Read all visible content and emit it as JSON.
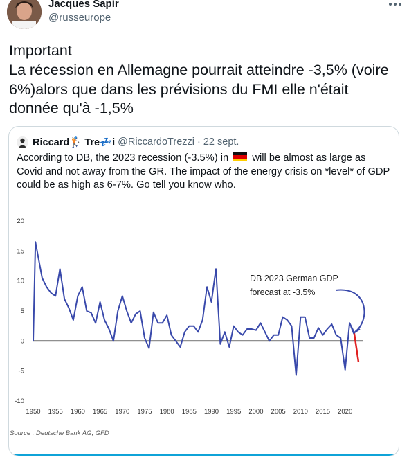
{
  "tweet": {
    "author_name": "Jacques Sapir",
    "author_handle": "@russeurope",
    "text": "Important\nLa récession en Allemagne pourrait atteindre -3,5% (voire 6%)alors que dans les prévisions du FMI elle n'était donnée qu'à -1,5%"
  },
  "quoted": {
    "author_name": "Riccard🏌️ Tre💤i",
    "author_handle": "@RiccardoTrezzi",
    "date": "· 22 sept.",
    "text_before_flag": "According to DB, the 2023 recession (-3.5%) in",
    "flag": "germany-flag",
    "text_after_flag": "will be almost as large as Covid and not away from the GR. The impact of the energy crisis on *level* of GDP could be as high as 6-7%. Go tell you know who."
  },
  "colors": {
    "series": "#3949ab",
    "forecast": "#e02020",
    "accent": "#0fa3d8",
    "border": "#cfd9de"
  },
  "chart_data": {
    "type": "line",
    "title": "",
    "xlabel": "",
    "ylabel": "",
    "xlim": [
      1950,
      2023
    ],
    "ylim": [
      -10,
      20
    ],
    "x_ticks": [
      1950,
      1955,
      1960,
      1965,
      1970,
      1975,
      1980,
      1985,
      1990,
      1995,
      2000,
      2005,
      2010,
      2015,
      2020
    ],
    "y_ticks": [
      20,
      15,
      10,
      5,
      0,
      -5,
      -10
    ],
    "grid": false,
    "zero_line": true,
    "annotation": "DB 2023 German GDP\nforecast at -3.5%",
    "source": "Source : Deutsche Bank AG, GFD",
    "series": [
      {
        "values": [
          [
            1950,
            0
          ],
          [
            1950.5,
            16.5
          ],
          [
            1952,
            10.5
          ],
          [
            1953,
            9
          ],
          [
            1954,
            8
          ],
          [
            1955,
            7.5
          ],
          [
            1956,
            12
          ],
          [
            1957,
            7
          ],
          [
            1958,
            5.5
          ],
          [
            1959,
            3.5
          ],
          [
            1960,
            7.5
          ],
          [
            1961,
            9
          ],
          [
            1962,
            5
          ],
          [
            1963,
            4.7
          ],
          [
            1964,
            3
          ],
          [
            1965,
            6.5
          ],
          [
            1966,
            3.5
          ],
          [
            1967,
            2
          ],
          [
            1968,
            0
          ],
          [
            1969,
            5
          ],
          [
            1970,
            7.5
          ],
          [
            1971,
            5
          ],
          [
            1972,
            3
          ],
          [
            1973,
            4.5
          ],
          [
            1974,
            5
          ],
          [
            1975,
            0.5
          ],
          [
            1976,
            -1.2
          ],
          [
            1977,
            4.8
          ],
          [
            1978,
            3
          ],
          [
            1979,
            3
          ],
          [
            1980,
            4.3
          ],
          [
            1981,
            1
          ],
          [
            1982,
            0
          ],
          [
            1983,
            -1
          ],
          [
            1984,
            1.5
          ],
          [
            1985,
            2.5
          ],
          [
            1986,
            2.5
          ],
          [
            1987,
            1.5
          ],
          [
            1988,
            3.5
          ],
          [
            1989,
            9
          ],
          [
            1990,
            6.5
          ],
          [
            1991,
            12
          ],
          [
            1992,
            -0.5
          ],
          [
            1993,
            1.5
          ],
          [
            1994,
            -1
          ],
          [
            1995,
            2.5
          ],
          [
            1996,
            1.5
          ],
          [
            1997,
            1
          ],
          [
            1998,
            2
          ],
          [
            1999,
            2
          ],
          [
            2000,
            1.8
          ],
          [
            2001,
            3
          ],
          [
            2002,
            1.5
          ],
          [
            2003,
            0
          ],
          [
            2004,
            1
          ],
          [
            2005,
            1
          ],
          [
            2006,
            4
          ],
          [
            2007,
            3.5
          ],
          [
            2008,
            2.5
          ],
          [
            2009,
            -5.7
          ],
          [
            2010,
            4
          ],
          [
            2011,
            4
          ],
          [
            2012,
            0.5
          ],
          [
            2013,
            0.5
          ],
          [
            2014,
            2.2
          ],
          [
            2015,
            1
          ],
          [
            2016,
            2
          ],
          [
            2017,
            2.8
          ],
          [
            2018,
            1
          ],
          [
            2019,
            0.5
          ],
          [
            2020,
            -4.8
          ],
          [
            2021,
            3
          ],
          [
            2022,
            1.5
          ]
        ]
      },
      {
        "name": "forecast",
        "values": [
          [
            2022,
            1.5
          ],
          [
            2023,
            -3.5
          ]
        ]
      }
    ]
  }
}
